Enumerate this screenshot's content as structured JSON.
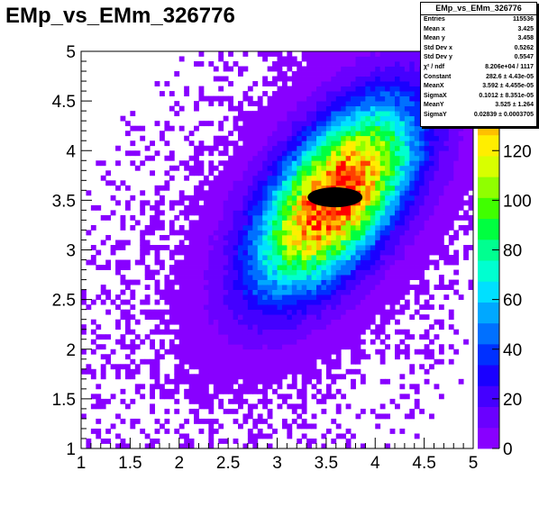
{
  "chart_data": {
    "type": "heatmap",
    "title": "EMp_vs_EMm_326776",
    "xlabel": "",
    "ylabel": "",
    "xlim": [
      1,
      5
    ],
    "ylim": [
      1,
      5
    ],
    "zlim": [
      0,
      160
    ],
    "bins_x": 80,
    "bins_y": 80,
    "x_ticks": [
      "1",
      "1.5",
      "2",
      "2.5",
      "3",
      "3.5",
      "4",
      "4.5",
      "5"
    ],
    "y_ticks": [
      "1",
      "1.5",
      "2",
      "2.5",
      "3",
      "3.5",
      "4",
      "4.5",
      "5"
    ],
    "z_ticks": [
      "0",
      "20",
      "40",
      "60",
      "80",
      "100",
      "120",
      "140"
    ],
    "distribution": {
      "model": "rotated 2D Gaussian core with broad tails",
      "peak_x": 3.59,
      "peak_y": 3.53,
      "sigma_major": 0.72,
      "sigma_minor": 0.36,
      "angle_deg": 52,
      "peak_value": 160,
      "saturated_core": {
        "x": 3.59,
        "y": 3.53,
        "rx": 0.28,
        "ry": 0.1
      }
    },
    "stats": {
      "title": "EMp_vs_EMm_326776",
      "rows": [
        {
          "label": "Entries",
          "value": "115536"
        },
        {
          "label": "Mean x",
          "value": "3.425"
        },
        {
          "label": "Mean y",
          "value": "3.458"
        },
        {
          "label": "Std Dev x",
          "value": "0.5262"
        },
        {
          "label": "Std Dev y",
          "value": "0.5547"
        },
        {
          "label": "χ² / ndf",
          "value": "8.206e+04 / 1117"
        },
        {
          "label": "Constant",
          "value": "282.6 ± 4.43e-05"
        },
        {
          "label": "MeanX",
          "value": "3.592 ± 4.455e-05"
        },
        {
          "label": "SigmaX",
          "value": "0.1012 ± 8.351e-05"
        },
        {
          "label": "MeanY",
          "value": "3.525 ± 1.264"
        },
        {
          "label": "SigmaY",
          "value": "0.02839 ± 0.0003705"
        }
      ]
    }
  },
  "palette": [
    "#8800ff",
    "#6a00ff",
    "#4400ff",
    "#1a00ff",
    "#0030ff",
    "#0070ff",
    "#00a8ff",
    "#00e0ff",
    "#00ffd0",
    "#00ff90",
    "#00ff40",
    "#40ff00",
    "#90ff00",
    "#d8ff00",
    "#ffee00",
    "#ffc000",
    "#ff8000",
    "#ff4000",
    "#ff0000"
  ]
}
